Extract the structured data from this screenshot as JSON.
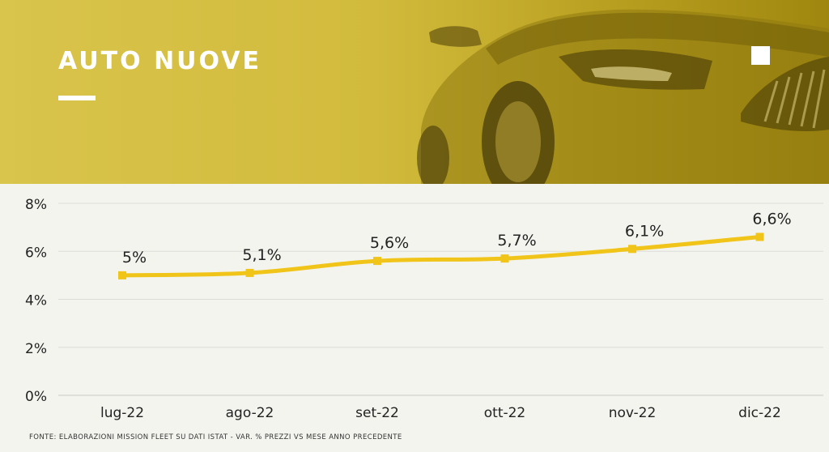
{
  "header": {
    "title": "AUTO NUOVE"
  },
  "footnote": "FONTE: ELABORAZIONI MISSION FLEET SU DATI ISTAT - VAR. % PREZZI VS MESE ANNO PRECEDENTE",
  "colors": {
    "banner": "#d2bb3c",
    "line": "#f0c419",
    "background": "#f4f4ef"
  },
  "chart_data": {
    "type": "line",
    "categories": [
      "lug-22",
      "ago-22",
      "set-22",
      "ott-22",
      "nov-22",
      "dic-22"
    ],
    "values": [
      5,
      5.1,
      5.6,
      5.7,
      6.1,
      6.6
    ],
    "value_labels": [
      "5%",
      "5,1%",
      "5,6%",
      "5,7%",
      "6,1%",
      "6,6%"
    ],
    "yticks": [
      0,
      2,
      4,
      6,
      8
    ],
    "ytick_labels": [
      "0%",
      "2%",
      "4%",
      "6%",
      "8%"
    ],
    "ylim": [
      0,
      8
    ],
    "grid": true,
    "legend": "none"
  }
}
